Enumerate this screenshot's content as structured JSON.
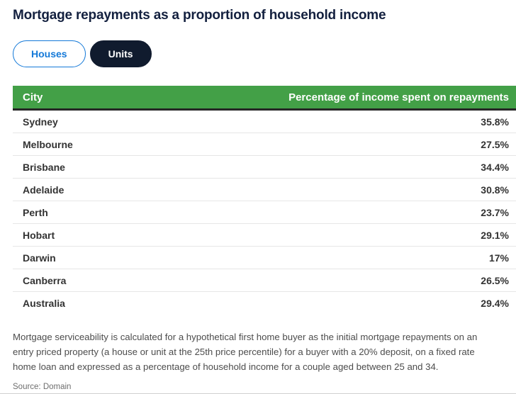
{
  "page": {
    "title": "Mortgage repayments as a proportion of household income"
  },
  "toggle": {
    "houses_label": "Houses",
    "units_label": "Units",
    "selected": "Units"
  },
  "chart_data": {
    "type": "table",
    "title": "Mortgage repayments as a proportion of household income",
    "series_options": [
      "Houses",
      "Units"
    ],
    "selected_series": "Units",
    "columns": [
      "City",
      "Percentage of income spent on repayments"
    ],
    "categories": [
      "Sydney",
      "Melbourne",
      "Brisbane",
      "Adelaide",
      "Perth",
      "Hobart",
      "Darwin",
      "Canberra",
      "Australia"
    ],
    "values": [
      35.8,
      27.5,
      34.4,
      30.8,
      23.7,
      29.1,
      17,
      26.5,
      29.4
    ],
    "value_labels": [
      "35.8%",
      "27.5%",
      "34.4%",
      "30.8%",
      "23.7%",
      "29.1%",
      "17%",
      "26.5%",
      "29.4%"
    ]
  },
  "footnote": {
    "text": "Mortgage serviceability is calculated for a hypothetical first home buyer as the initial mortgage repayments on an entry priced property (a house or unit at the 25th price percentile) for a buyer with a 20% deposit, on a fixed rate home loan and expressed as a percentage of household income for a couple aged between 25 and 34.",
    "source": "Source: Domain"
  },
  "colors": {
    "header_green": "#43a047",
    "navy": "#101b2e",
    "blue": "#1479d8"
  }
}
